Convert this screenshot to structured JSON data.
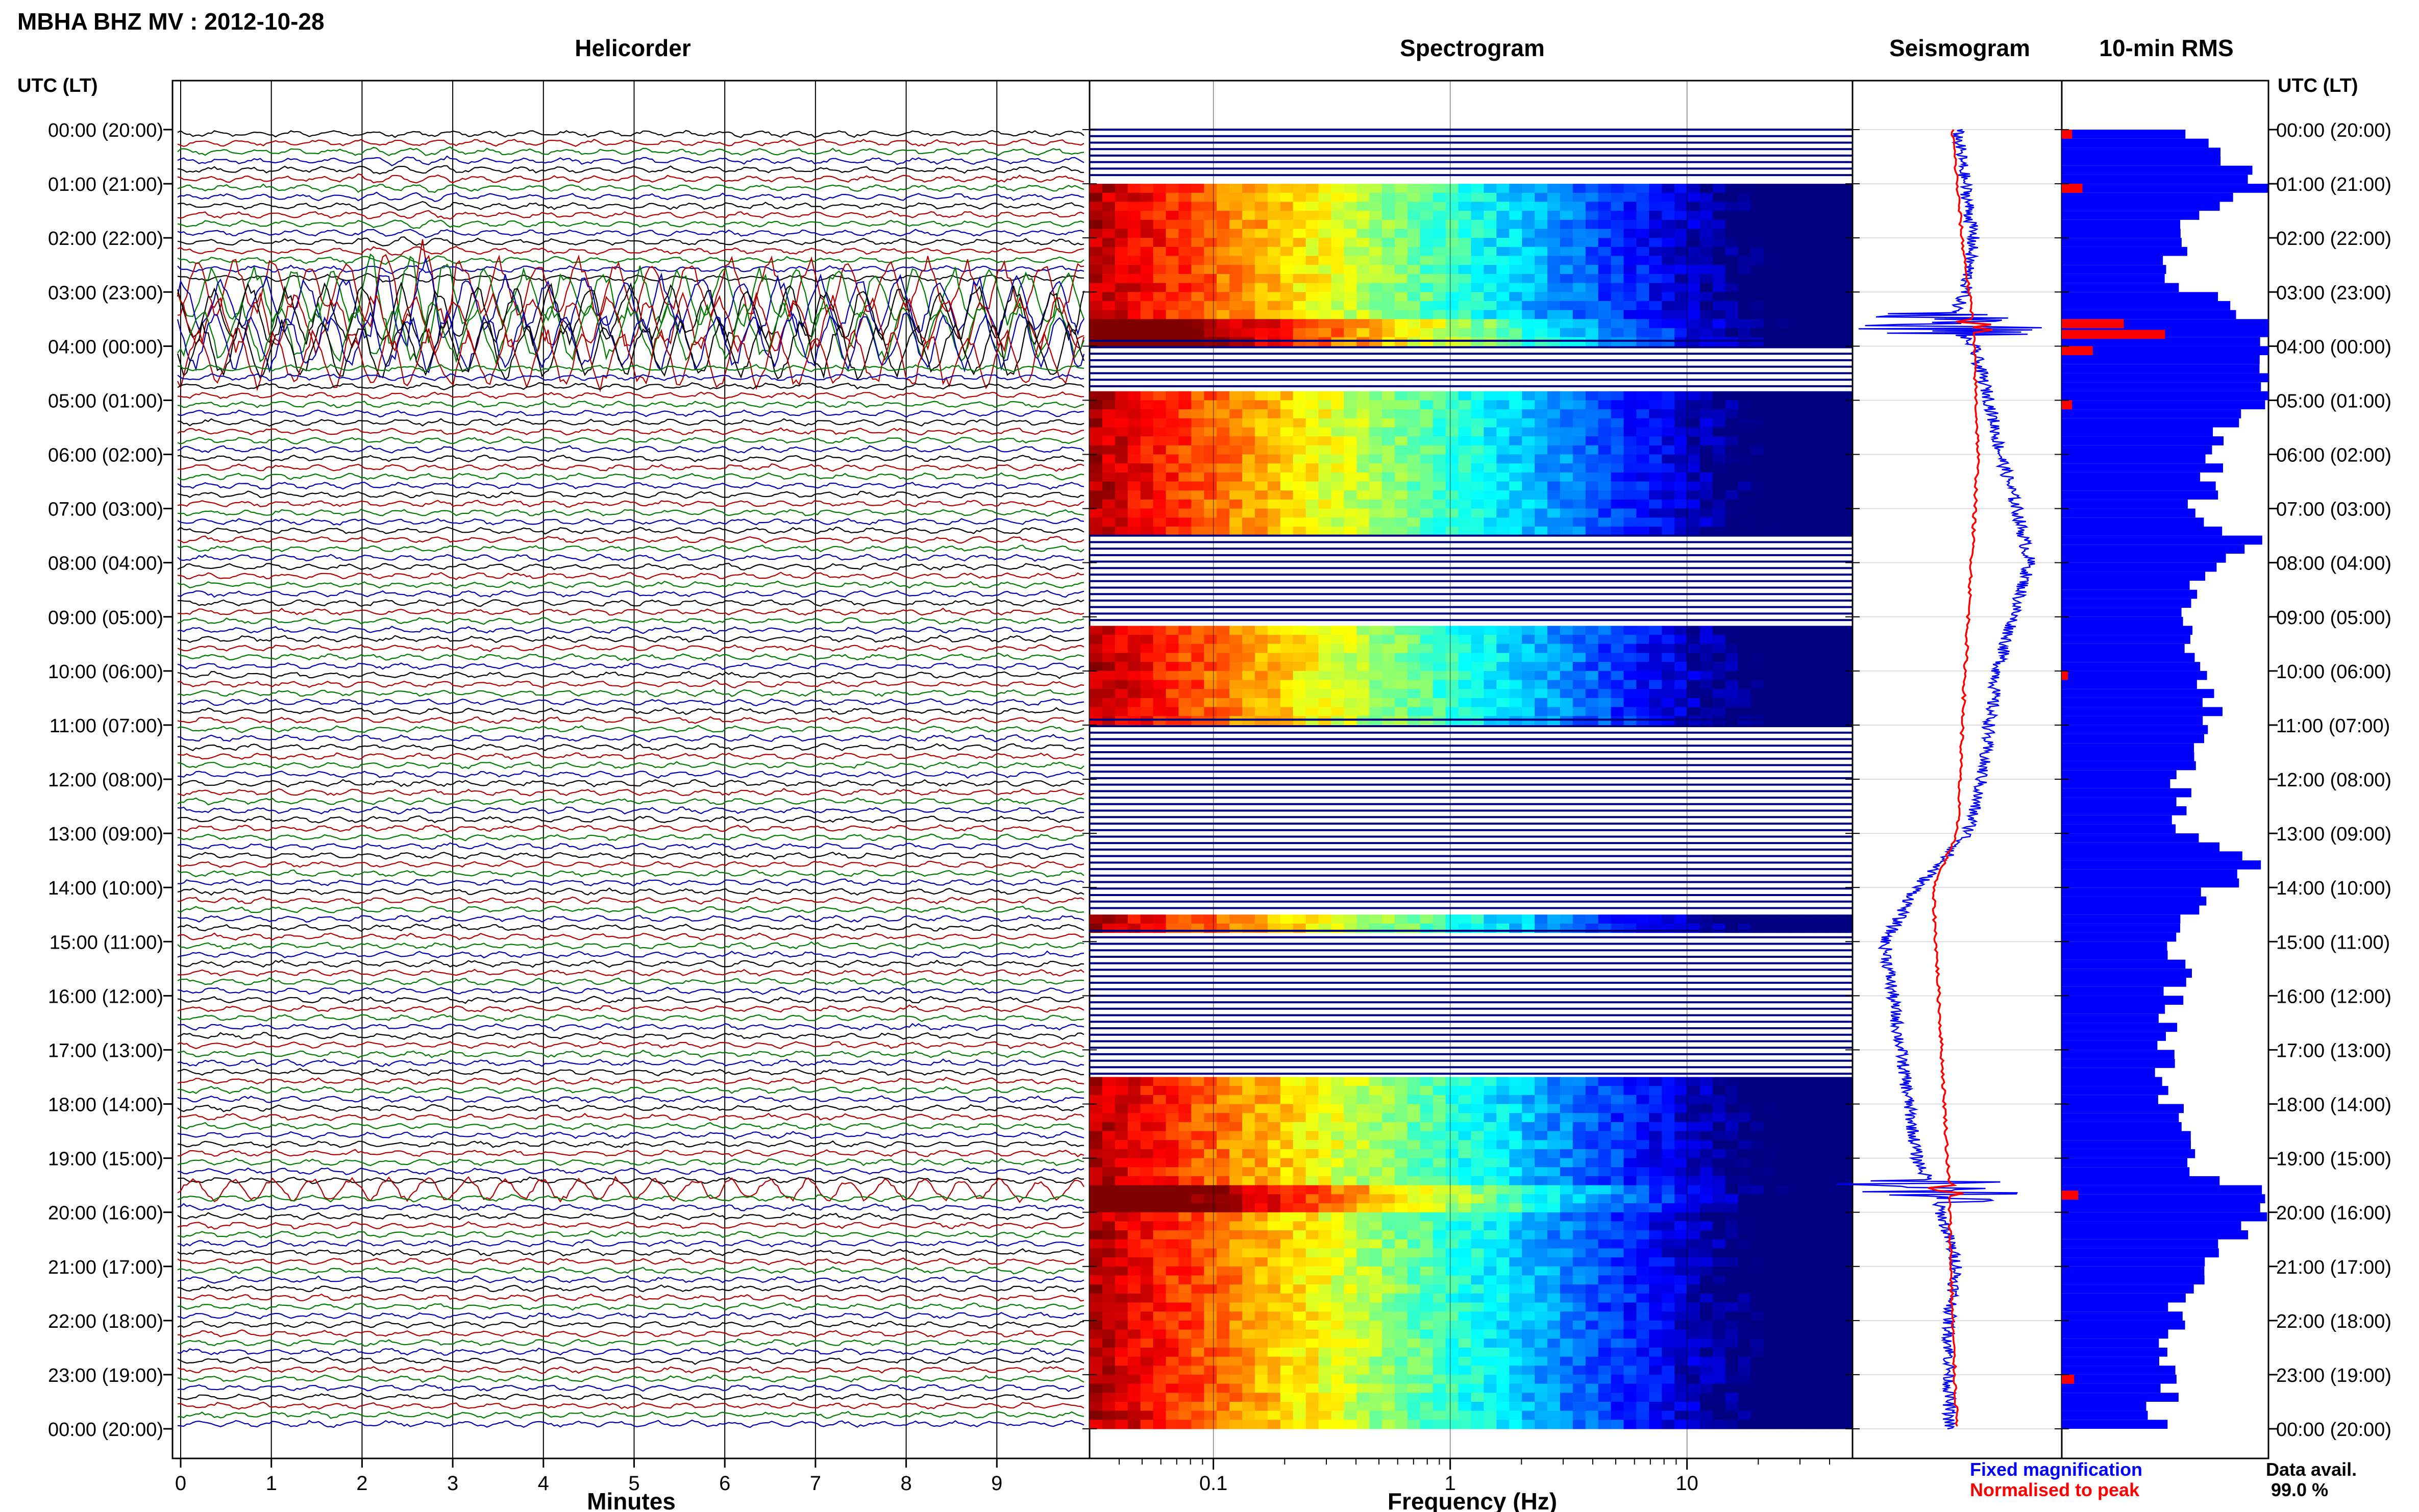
{
  "figure": {
    "station_title": "MBHA BHZ MV : 2012-10-28",
    "utc_lt_label": "UTC (LT)",
    "row_labels": [
      "00:00 (20:00)",
      "01:00 (21:00)",
      "02:00 (22:00)",
      "03:00 (23:00)",
      "04:00 (00:00)",
      "05:00 (01:00)",
      "06:00 (02:00)",
      "07:00 (03:00)",
      "08:00 (04:00)",
      "09:00 (05:00)",
      "10:00 (06:00)",
      "11:00 (07:00)",
      "12:00 (08:00)",
      "13:00 (09:00)",
      "14:00 (10:00)",
      "15:00 (11:00)",
      "16:00 (12:00)",
      "17:00 (13:00)",
      "18:00 (14:00)",
      "19:00 (15:00)",
      "20:00 (16:00)",
      "21:00 (17:00)",
      "22:00 (18:00)",
      "23:00 (19:00)",
      "00:00 (20:00)"
    ],
    "legend_fixed": "Fixed magnification",
    "legend_normalised": "Normalised to peak",
    "data_avail_label": "Data avail.",
    "data_avail_value": "99.0 %",
    "colors": {
      "trace_black": "#000000",
      "trace_red": "#b00000",
      "trace_green": "#007a00",
      "trace_blue": "#0000b0",
      "fixed": "#0000ff",
      "normalised": "#ff0000",
      "spectro_low": "#000080",
      "spectro_high": "#800000"
    }
  },
  "chart_data": [
    {
      "type": "line",
      "title": "Helicorder",
      "xlabel": "Minutes",
      "ylabel": "",
      "x_ticks": [
        0,
        1,
        2,
        3,
        4,
        5,
        6,
        7,
        8,
        9
      ],
      "xlim": [
        0,
        10
      ],
      "grid": true,
      "trace_colors_cycle": [
        "black",
        "red",
        "green",
        "blue"
      ],
      "lines_per_hour": 6,
      "high_amplitude_hours": [
        2.8,
        4.3
      ],
      "large_event_hours": [
        0.2,
        3.2
      ],
      "event_hours": [
        19.5
      ]
    },
    {
      "type": "heatmap",
      "title": "Spectrogram",
      "xlabel": "Frequency (Hz)",
      "ylabel": "",
      "x_scale": "log",
      "x_ticks": [
        "0.1",
        "1",
        "10"
      ],
      "xlim": [
        0.03,
        50
      ],
      "gap_hours": [
        0.0,
        0.9,
        3.9,
        4.8,
        7.5,
        9.1,
        10.9,
        14.4,
        14.8,
        17.5
      ],
      "peak_hours": [
        3.6,
        19.6
      ]
    },
    {
      "type": "line",
      "title": "Seismogram",
      "series": [
        {
          "name": "Fixed magnification",
          "hours": [
            0,
            1,
            2,
            3,
            3.6,
            4,
            5,
            6,
            7,
            8,
            9,
            10,
            11,
            12,
            13,
            14,
            15,
            16,
            17,
            18,
            19,
            19.6,
            20,
            21,
            22,
            23,
            24
          ],
          "values": [
            0.35,
            0.4,
            0.45,
            0.4,
            0.3,
            0.45,
            0.55,
            0.62,
            0.72,
            0.8,
            0.7,
            0.6,
            0.55,
            0.5,
            0.42,
            0.1,
            -0.1,
            -0.05,
            0.0,
            0.05,
            0.1,
            0.2,
            0.25,
            0.35,
            0.3,
            0.3,
            0.3
          ]
        },
        {
          "name": "Normalised to peak",
          "hours": [
            0,
            2,
            3.6,
            6,
            10,
            13,
            14,
            19.6,
            22,
            24
          ],
          "values": [
            0.32,
            0.38,
            0.45,
            0.48,
            0.4,
            0.35,
            0.2,
            0.3,
            0.32,
            0.35
          ]
        }
      ],
      "peak_hours": [
        3.6,
        19.6
      ]
    },
    {
      "type": "bar",
      "title": "10-min RMS",
      "orientation": "horizontal",
      "series": [
        {
          "name": "Fixed magnification",
          "hours": [
            0,
            0.5,
            1,
            1.5,
            2,
            2.5,
            3,
            3.5,
            4,
            4.5,
            5,
            5.5,
            6,
            6.5,
            7,
            7.5,
            8,
            8.5,
            9,
            9.5,
            10,
            10.5,
            11,
            11.5,
            12,
            12.5,
            13,
            13.5,
            14,
            14.5,
            15,
            15.5,
            16,
            16.5,
            17,
            17.5,
            18,
            18.5,
            19,
            19.5,
            20,
            20.5,
            21,
            21.5,
            22,
            22.5,
            23,
            23.5
          ],
          "values": [
            0.6,
            0.8,
            0.95,
            0.6,
            0.55,
            0.5,
            0.7,
            1.0,
            1.0,
            1.0,
            0.95,
            0.8,
            0.7,
            0.75,
            0.65,
            0.9,
            0.75,
            0.6,
            0.58,
            0.62,
            0.7,
            0.72,
            0.68,
            0.6,
            0.58,
            0.56,
            0.6,
            0.95,
            0.7,
            0.62,
            0.55,
            0.58,
            0.52,
            0.5,
            0.48,
            0.52,
            0.55,
            0.6,
            0.58,
            0.9,
            1.0,
            0.75,
            0.68,
            0.6,
            0.55,
            0.5,
            0.6,
            0.45
          ]
        },
        {
          "name": "Normalised to peak",
          "hours": [
            0,
            1,
            3.5,
            3.7,
            4,
            5,
            10,
            19.6,
            23
          ],
          "values": [
            0.05,
            0.1,
            0.3,
            0.5,
            0.15,
            0.05,
            0.03,
            0.08,
            0.06
          ]
        }
      ]
    }
  ]
}
